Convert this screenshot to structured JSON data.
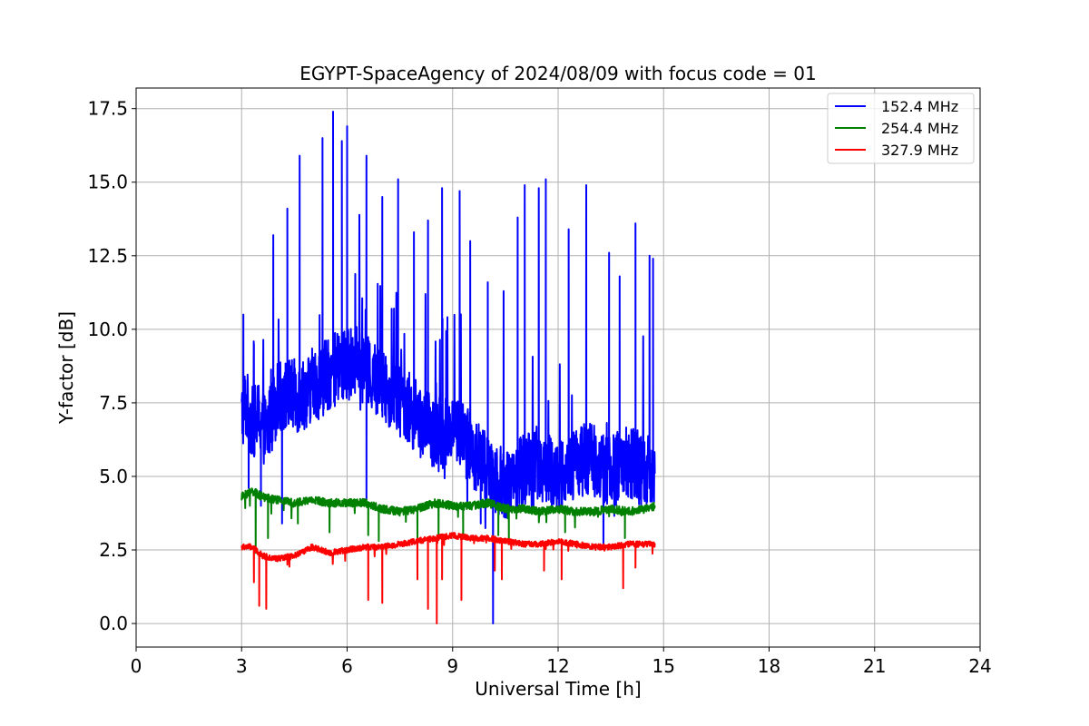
{
  "chart_data": {
    "type": "line",
    "title": "EGYPT-SpaceAgency of 2024/08/09 with focus code = 01",
    "xlabel": "Universal Time [h]",
    "ylabel": "Y-factor [dB]",
    "xlim": [
      0,
      24
    ],
    "ylim": [
      -0.8,
      18.2
    ],
    "xticks": [
      0,
      3,
      6,
      9,
      12,
      15,
      18,
      21,
      24
    ],
    "xtick_labels": [
      "0",
      "3",
      "6",
      "9",
      "12",
      "15",
      "18",
      "21",
      "24"
    ],
    "yticks": [
      0.0,
      2.5,
      5.0,
      7.5,
      10.0,
      12.5,
      15.0,
      17.5
    ],
    "ytick_labels": [
      "0.0",
      "2.5",
      "5.0",
      "7.5",
      "10.0",
      "12.5",
      "15.0",
      "17.5"
    ],
    "grid": true,
    "legend_position": "top-right",
    "series": [
      {
        "name": "152.4 MHz",
        "color": "#0000ff",
        "x": [
          3.0,
          3.1,
          3.3,
          3.5,
          3.7,
          4.0,
          4.3,
          4.6,
          5.0,
          5.3,
          5.6,
          6.0,
          6.3,
          6.6,
          7.0,
          7.3,
          7.6,
          8.0,
          8.3,
          8.6,
          9.0,
          9.3,
          9.6,
          10.0,
          10.3,
          10.6,
          11.0,
          11.3,
          11.6,
          12.0,
          12.3,
          12.6,
          13.0,
          13.3,
          13.6,
          14.0,
          14.3,
          14.6,
          14.75
        ],
        "values": [
          7.0,
          7.5,
          6.8,
          7.0,
          6.5,
          7.6,
          7.8,
          7.7,
          8.0,
          8.3,
          8.6,
          8.8,
          8.9,
          8.5,
          8.1,
          7.8,
          7.5,
          7.0,
          6.6,
          6.4,
          6.8,
          6.3,
          5.8,
          5.2,
          4.9,
          4.8,
          5.2,
          5.6,
          5.3,
          5.0,
          5.2,
          5.5,
          5.6,
          5.3,
          5.2,
          5.5,
          5.3,
          5.1,
          5.4
        ],
        "peaks": [
          {
            "x": 3.05,
            "y": 10.5
          },
          {
            "x": 3.35,
            "y": 9.5
          },
          {
            "x": 3.9,
            "y": 13.2
          },
          {
            "x": 4.3,
            "y": 14.1
          },
          {
            "x": 4.65,
            "y": 15.9
          },
          {
            "x": 5.3,
            "y": 16.5
          },
          {
            "x": 5.6,
            "y": 17.4
          },
          {
            "x": 5.85,
            "y": 16.4
          },
          {
            "x": 6.0,
            "y": 16.9
          },
          {
            "x": 6.55,
            "y": 15.9
          },
          {
            "x": 7.0,
            "y": 14.5
          },
          {
            "x": 7.45,
            "y": 15.1
          },
          {
            "x": 7.9,
            "y": 13.3
          },
          {
            "x": 8.3,
            "y": 13.7
          },
          {
            "x": 8.7,
            "y": 14.8
          },
          {
            "x": 9.2,
            "y": 14.7
          },
          {
            "x": 9.5,
            "y": 13.0
          },
          {
            "x": 10.0,
            "y": 11.6
          },
          {
            "x": 10.45,
            "y": 11.3
          },
          {
            "x": 10.85,
            "y": 13.8
          },
          {
            "x": 11.05,
            "y": 14.9
          },
          {
            "x": 11.45,
            "y": 14.8
          },
          {
            "x": 11.65,
            "y": 15.1
          },
          {
            "x": 12.3,
            "y": 13.4
          },
          {
            "x": 12.8,
            "y": 14.9
          },
          {
            "x": 13.45,
            "y": 12.6
          },
          {
            "x": 13.75,
            "y": 11.8
          },
          {
            "x": 14.2,
            "y": 13.6
          },
          {
            "x": 14.6,
            "y": 12.5
          },
          {
            "x": 14.7,
            "y": 12.4
          }
        ],
        "dips": [
          {
            "x": 3.2,
            "y": 4.6
          },
          {
            "x": 3.55,
            "y": 4.0
          },
          {
            "x": 4.15,
            "y": 3.4
          },
          {
            "x": 6.55,
            "y": 4.2
          },
          {
            "x": 9.8,
            "y": 3.4
          },
          {
            "x": 10.15,
            "y": 0.0
          },
          {
            "x": 10.5,
            "y": 3.6
          },
          {
            "x": 11.3,
            "y": 3.8
          }
        ]
      },
      {
        "name": "254.4 MHz",
        "color": "#008000",
        "x": [
          3.0,
          3.3,
          3.6,
          4.0,
          4.5,
          5.0,
          5.5,
          6.0,
          6.5,
          7.0,
          7.5,
          8.0,
          8.5,
          9.0,
          9.5,
          10.0,
          10.5,
          11.0,
          11.5,
          12.0,
          12.5,
          13.0,
          13.5,
          14.0,
          14.5,
          14.75
        ],
        "values": [
          4.3,
          4.5,
          4.3,
          4.2,
          4.1,
          4.2,
          4.1,
          4.1,
          4.1,
          3.9,
          3.8,
          3.9,
          4.1,
          4.0,
          4.0,
          4.1,
          3.9,
          3.9,
          3.8,
          3.9,
          3.8,
          3.8,
          3.9,
          3.8,
          3.9,
          4.0
        ],
        "dips": [
          {
            "x": 3.4,
            "y": 2.4
          },
          {
            "x": 3.75,
            "y": 2.9
          },
          {
            "x": 4.6,
            "y": 3.4
          },
          {
            "x": 5.5,
            "y": 3.1
          },
          {
            "x": 6.6,
            "y": 3.0
          },
          {
            "x": 6.9,
            "y": 2.8
          },
          {
            "x": 8.0,
            "y": 2.9
          },
          {
            "x": 8.6,
            "y": 2.9
          },
          {
            "x": 9.3,
            "y": 2.9
          },
          {
            "x": 10.3,
            "y": 3.0
          },
          {
            "x": 10.6,
            "y": 2.8
          },
          {
            "x": 12.2,
            "y": 3.1
          },
          {
            "x": 13.9,
            "y": 2.9
          }
        ]
      },
      {
        "name": "327.9 MHz",
        "color": "#ff0000",
        "x": [
          3.0,
          3.3,
          3.6,
          4.0,
          4.5,
          5.0,
          5.5,
          6.0,
          6.5,
          7.0,
          7.5,
          8.0,
          8.5,
          9.0,
          9.5,
          10.0,
          10.5,
          11.0,
          11.5,
          12.0,
          12.5,
          13.0,
          13.5,
          14.0,
          14.5,
          14.75
        ],
        "values": [
          2.6,
          2.6,
          2.3,
          2.2,
          2.3,
          2.6,
          2.4,
          2.5,
          2.6,
          2.6,
          2.7,
          2.8,
          2.9,
          3.0,
          2.9,
          2.9,
          2.8,
          2.7,
          2.7,
          2.8,
          2.7,
          2.6,
          2.6,
          2.7,
          2.7,
          2.7
        ],
        "dips": [
          {
            "x": 3.35,
            "y": 1.4
          },
          {
            "x": 3.5,
            "y": 0.6
          },
          {
            "x": 3.7,
            "y": 0.5
          },
          {
            "x": 4.3,
            "y": 2.0
          },
          {
            "x": 6.6,
            "y": 0.8
          },
          {
            "x": 7.0,
            "y": 0.7
          },
          {
            "x": 8.0,
            "y": 1.5
          },
          {
            "x": 8.3,
            "y": 0.5
          },
          {
            "x": 8.55,
            "y": 0.0
          },
          {
            "x": 8.7,
            "y": 1.5
          },
          {
            "x": 9.25,
            "y": 0.8
          },
          {
            "x": 10.2,
            "y": 1.8
          },
          {
            "x": 10.4,
            "y": 1.5
          },
          {
            "x": 11.6,
            "y": 1.8
          },
          {
            "x": 12.1,
            "y": 1.5
          },
          {
            "x": 13.85,
            "y": 1.2
          },
          {
            "x": 14.2,
            "y": 1.9
          }
        ]
      }
    ]
  }
}
